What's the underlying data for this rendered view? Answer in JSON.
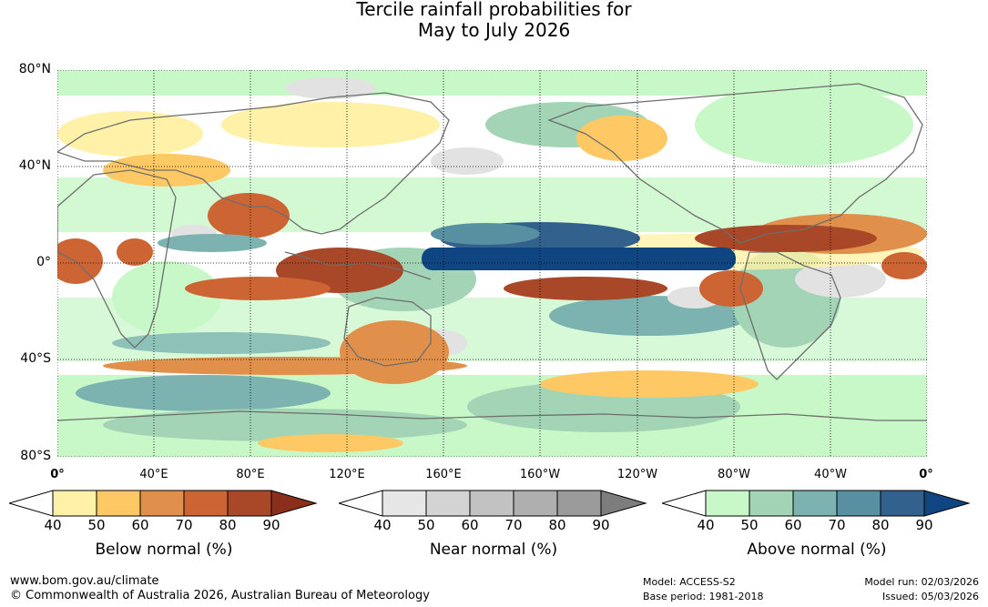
{
  "title": {
    "line1": "Tercile rainfall probabilities for",
    "line2": "May to July 2026"
  },
  "map": {
    "lat_labels": [
      "80°N",
      "40°N",
      "0°",
      "40°S",
      "80°S"
    ],
    "lon_labels": [
      "0°",
      "40°E",
      "80°E",
      "120°E",
      "160°E",
      "160°W",
      "120°W",
      "80°W",
      "40°W",
      "0°"
    ],
    "colors": {
      "ocean": "#ffffff",
      "coast": "#6e6e6e",
      "grid": "#000000"
    }
  },
  "legends": [
    {
      "title": "Below normal (%)",
      "ticks": [
        "40",
        "50",
        "60",
        "70",
        "80",
        "90"
      ],
      "colors": [
        "#fff1a8",
        "#fec965",
        "#e0904a",
        "#cd6433",
        "#a94828",
        "#8b2f1c"
      ]
    },
    {
      "title": "Near normal (%)",
      "ticks": [
        "40",
        "50",
        "60",
        "70",
        "80",
        "90"
      ],
      "colors": [
        "#e6e6e6",
        "#d4d4d4",
        "#c2c2c2",
        "#afafaf",
        "#9b9b9b",
        "#7d7d7d"
      ]
    },
    {
      "title": "Above normal (%)",
      "ticks": [
        "40",
        "50",
        "60",
        "70",
        "80",
        "90"
      ],
      "colors": [
        "#c8f7c8",
        "#a2d4b5",
        "#7cb3b0",
        "#5890a2",
        "#32618e",
        "#0f4580"
      ]
    }
  ],
  "footer": {
    "url": "www.bom.gov.au/climate",
    "copyright": "© Commonwealth of Australia 2026, Australian Bureau of Meteorology",
    "model": "Model: ACCESS-S2",
    "base_period": "Base period: 1981-2018",
    "model_run": "Model run: 02/03/2026",
    "issued": "Issued: 05/03/2026"
  }
}
